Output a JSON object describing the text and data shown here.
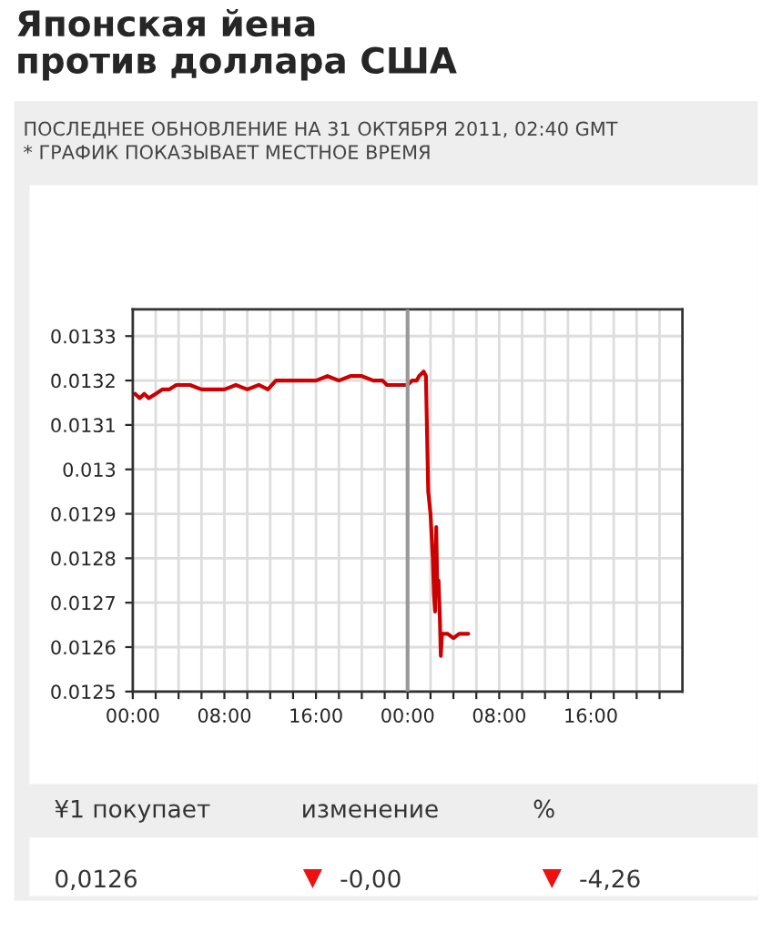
{
  "chart_data": {
    "type": "line",
    "title": "Японская йена\nпротив доллара США",
    "subtitle": "ПОСЛЕДНЕЕ ОБНОВЛЕНИЕ НА 31 ОКТЯБРЯ 2011, 02:40 GMT",
    "annotations": [
      "* ГРАФИК ПОКАЗЫВАЕТ МЕСТНОЕ ВРЕМЯ",
      "¥1 покупает",
      "изменение",
      "%",
      "0,0126",
      "-0,00",
      "-4,26"
    ],
    "x": [
      "2011-10-30T00:12",
      "2011-10-30T00:36",
      "2011-10-30T01:00",
      "2011-10-30T01:24",
      "2011-10-30T02:00",
      "2011-10-30T02:36",
      "2011-10-30T03:12",
      "2011-10-30T03:48",
      "2011-10-30T05:00",
      "2011-10-30T06:00",
      "2011-10-30T07:00",
      "2011-10-30T08:00",
      "2011-10-30T09:00",
      "2011-10-30T10:00",
      "2011-10-30T11:00",
      "2011-10-30T11:48",
      "2011-10-30T12:30",
      "2011-10-30T13:30",
      "2011-10-30T15:00",
      "2011-10-30T16:00",
      "2011-10-30T17:00",
      "2011-10-30T18:00",
      "2011-10-30T19:00",
      "2011-10-30T20:00",
      "2011-10-30T21:00",
      "2011-10-30T21:48",
      "2011-10-30T22:12",
      "2011-10-30T23:00",
      "2011-10-31T00:00",
      "2011-10-31T00:24",
      "2011-10-31T00:48",
      "2011-10-31T01:00",
      "2011-10-31T01:24",
      "2011-10-31T01:36",
      "2011-10-31T01:48",
      "2011-10-31T02:00",
      "2011-10-31T02:12",
      "2011-10-31T02:18",
      "2011-10-31T02:24",
      "2011-10-31T02:30",
      "2011-10-31T02:36",
      "2011-10-31T02:42",
      "2011-10-31T02:48",
      "2011-10-31T02:54",
      "2011-10-31T03:00",
      "2011-10-31T03:30",
      "2011-10-31T04:00",
      "2011-10-31T04:30",
      "2011-10-31T05:18"
    ],
    "series": [
      {
        "color": "#cc0000",
        "values": [
          0.01317,
          0.01316,
          0.01317,
          0.01316,
          0.01317,
          0.01318,
          0.01318,
          0.01319,
          0.01319,
          0.01318,
          0.01318,
          0.01318,
          0.01319,
          0.01318,
          0.01319,
          0.01318,
          0.0132,
          0.0132,
          0.0132,
          0.0132,
          0.01321,
          0.0132,
          0.01321,
          0.01321,
          0.0132,
          0.0132,
          0.01319,
          0.01319,
          0.01319,
          0.0132,
          0.0132,
          0.01321,
          0.01322,
          0.01321,
          0.01295,
          0.0129,
          0.0128,
          0.01272,
          0.01268,
          0.01287,
          0.01272,
          0.01275,
          0.01268,
          0.01258,
          0.01263,
          0.01263,
          0.01262,
          0.01263,
          0.01263
        ]
      }
    ],
    "xlim": [
      "2011-10-30T00:00",
      "2011-11-01T00:00"
    ],
    "xticks": [
      {
        "value": "2011-10-30T00:00",
        "label": "00:00"
      },
      {
        "value": "2011-10-30T02:00",
        "label": null
      },
      {
        "value": "2011-10-30T04:00",
        "label": null
      },
      {
        "value": "2011-10-30T06:00",
        "label": null
      },
      {
        "value": "2011-10-30T08:00",
        "label": "08:00"
      },
      {
        "value": "2011-10-30T10:00",
        "label": null
      },
      {
        "value": "2011-10-30T12:00",
        "label": null
      },
      {
        "value": "2011-10-30T14:00",
        "label": null
      },
      {
        "value": "2011-10-30T16:00",
        "label": "16:00"
      },
      {
        "value": "2011-10-30T18:00",
        "label": null
      },
      {
        "value": "2011-10-30T20:00",
        "label": null
      },
      {
        "value": "2011-10-30T22:00",
        "label": null
      },
      {
        "value": "2011-10-31T00:00",
        "label": "00:00"
      },
      {
        "value": "2011-10-31T02:00",
        "label": null
      },
      {
        "value": "2011-10-31T04:00",
        "label": null
      },
      {
        "value": "2011-10-31T06:00",
        "label": null
      },
      {
        "value": "2011-10-31T08:00",
        "label": "08:00"
      },
      {
        "value": "2011-10-31T10:00",
        "label": null
      },
      {
        "value": "2011-10-31T12:00",
        "label": null
      },
      {
        "value": "2011-10-31T14:00",
        "label": null
      },
      {
        "value": "2011-10-31T16:00",
        "label": "16:00"
      },
      {
        "value": "2011-10-31T18:00",
        "label": null
      },
      {
        "value": "2011-10-31T20:00",
        "label": null
      },
      {
        "value": "2011-10-31T22:00",
        "label": null
      }
    ],
    "ylim": [
      0.0125,
      0.01336
    ],
    "yticks": [
      0.0125,
      0.0126,
      0.0127,
      0.0128,
      0.0129,
      0.013,
      0.0131,
      0.0132,
      0.0133
    ],
    "ref_lines": [
      {
        "axis": "x",
        "value": "2011-10-31T00:00",
        "color": "#999999"
      }
    ],
    "grid": true,
    "marker": "none",
    "line_style": "solid"
  }
}
